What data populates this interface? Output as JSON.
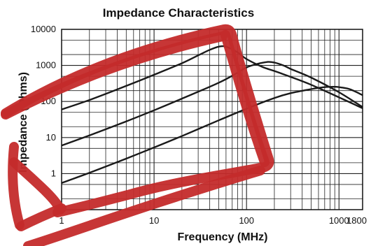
{
  "chart_data": {
    "type": "line",
    "title": "Impedance Characteristics",
    "xlabel": "Frequency (MHz)",
    "ylabel": "Impedance (Ohms)",
    "x_scale": "log",
    "y_scale": "log",
    "xlim": [
      1,
      1800
    ],
    "ylim": [
      0.1,
      10000
    ],
    "x_ticks": [
      {
        "value": 1,
        "label": "1"
      },
      {
        "value": 10,
        "label": "10"
      },
      {
        "value": 100,
        "label": "100"
      },
      {
        "value": 1000,
        "label": "1000"
      },
      {
        "value": 1800,
        "label": "1800"
      }
    ],
    "y_ticks": [
      {
        "value": 10000,
        "label": "10000"
      },
      {
        "value": 1000,
        "label": "1000"
      },
      {
        "value": 100,
        "label": "100"
      },
      {
        "value": 10,
        "label": "10"
      },
      {
        "value": 1,
        "label": "1"
      }
    ],
    "grid": true,
    "series": [
      {
        "color": "#1a1a1a",
        "x": [
          1,
          2,
          5,
          10,
          20,
          30,
          40,
          50,
          60,
          80,
          100,
          150,
          200,
          300,
          500,
          1000,
          1800
        ],
        "y": [
          60,
          110,
          270,
          550,
          1150,
          1900,
          2700,
          3300,
          3300,
          2300,
          1500,
          900,
          700,
          480,
          290,
          130,
          65
        ]
      },
      {
        "color": "#1a1a1a",
        "x": [
          1,
          2,
          5,
          10,
          20,
          50,
          80,
          100,
          130,
          170,
          200,
          250,
          300,
          500,
          1000,
          1800
        ],
        "y": [
          6,
          11.5,
          28,
          57,
          120,
          330,
          630,
          880,
          1100,
          1250,
          1200,
          1000,
          800,
          460,
          180,
          70
        ]
      },
      {
        "color": "#1a1a1a",
        "x": [
          1,
          2,
          5,
          10,
          20,
          50,
          100,
          200,
          300,
          500,
          700,
          900,
          1000,
          1300,
          1800
        ],
        "y": [
          0.55,
          1.05,
          2.6,
          5.3,
          11,
          30,
          63,
          125,
          170,
          220,
          250,
          255,
          250,
          220,
          150
        ]
      }
    ]
  },
  "overlay": {
    "color": "#c42b2b"
  }
}
